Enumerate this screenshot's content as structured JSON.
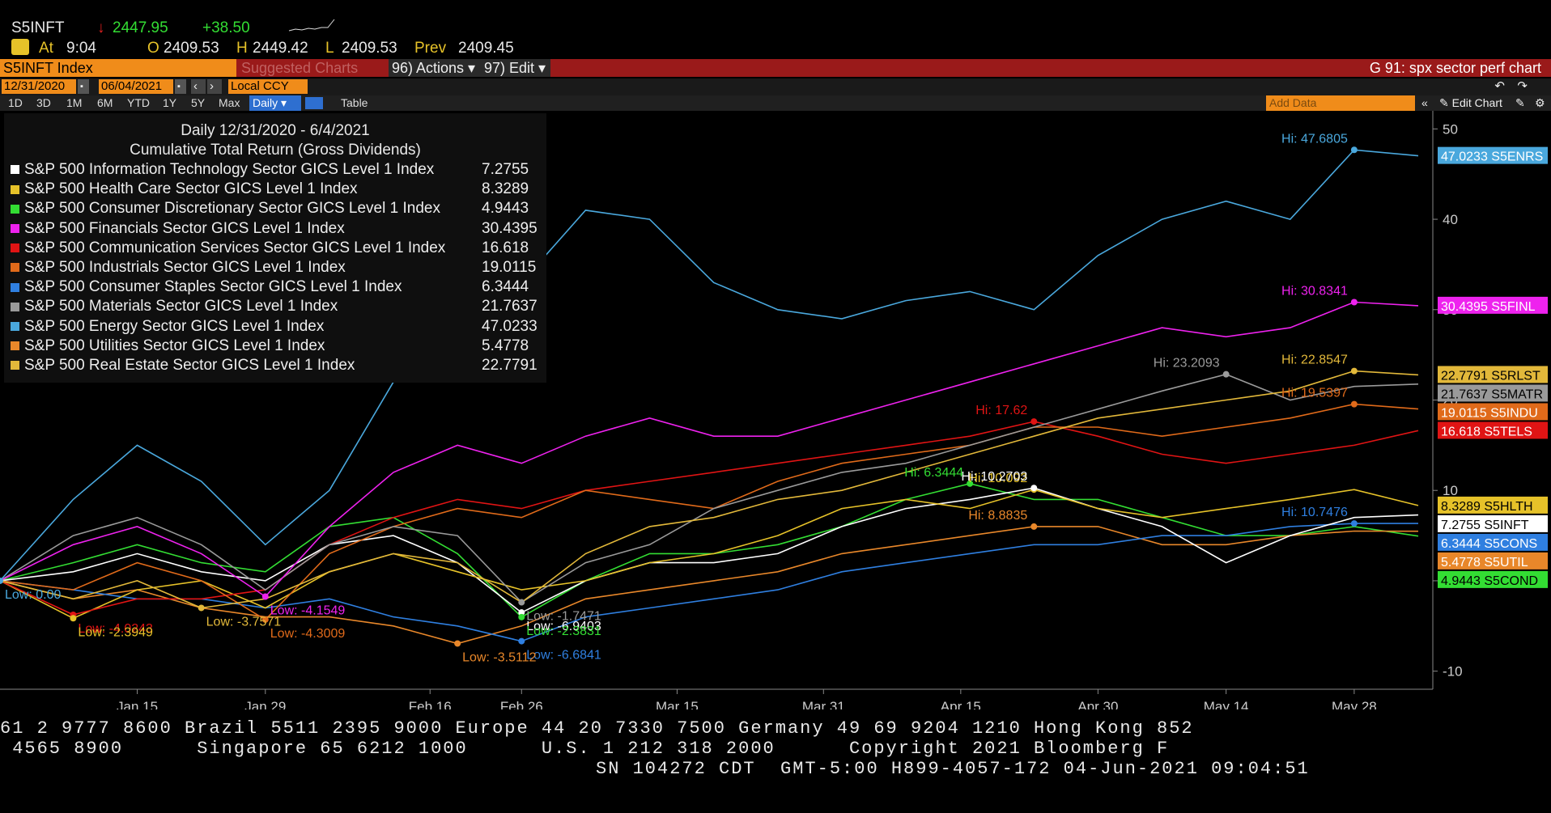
{
  "header": {
    "ticker": "S5INFT",
    "arrow": "↓",
    "price": "2447.95",
    "change": "+38.50",
    "at_label": "At",
    "time": "9:04",
    "open_label": "O",
    "open": "2409.53",
    "high_label": "H",
    "high": "2449.42",
    "low_label": "L",
    "low": "2409.53",
    "prev_label": "Prev",
    "prev": "2409.45"
  },
  "toolbar": {
    "security": "S5INFT Index",
    "suggested": "Suggested Charts",
    "actions": "96) Actions ▾",
    "edit": "97) Edit ▾",
    "chart_title": "G 91: spx sector perf chart"
  },
  "datebar": {
    "start_date": "12/31/2020",
    "end_date": "06/04/2021",
    "currency": "Local CCY",
    "add_data_placeholder": "Add Data",
    "edit_chart": "✎ Edit Chart"
  },
  "periods": [
    "1D",
    "3D",
    "1M",
    "6M",
    "YTD",
    "1Y",
    "5Y",
    "Max"
  ],
  "period_selected": "Daily ▾",
  "table_label": "Table",
  "legend": {
    "title": "Daily 12/31/2020 - 6/4/2021",
    "subtitle": "Cumulative Total Return (Gross Dividends)",
    "items": [
      {
        "name": "S&P 500 Information Technology Sector GICS Level 1 Index",
        "value": "7.2755",
        "color": "#ffffff"
      },
      {
        "name": "S&P 500 Health Care Sector GICS Level 1 Index",
        "value": "8.3289",
        "color": "#e6c229"
      },
      {
        "name": "S&P 500 Consumer Discretionary Sector GICS Level 1 Index",
        "value": "4.9443",
        "color": "#33dd33"
      },
      {
        "name": "S&P 500 Financials Sector GICS Level 1 Index",
        "value": "30.4395",
        "color": "#ee22ee"
      },
      {
        "name": "S&P 500 Communication Services Sector GICS Level 1 Index",
        "value": "16.618",
        "color": "#e01414"
      },
      {
        "name": "S&P 500 Industrials Sector GICS Level 1 Index",
        "value": "19.0115",
        "color": "#e06a1a"
      },
      {
        "name": "S&P 500 Consumer Staples Sector GICS Level 1 Index",
        "value": "6.3444",
        "color": "#2f7fe0"
      },
      {
        "name": "S&P 500 Materials Sector GICS Level 1 Index",
        "value": "21.7637",
        "color": "#9a9a9a"
      },
      {
        "name": "S&P 500 Energy Sector GICS Level 1 Index",
        "value": "47.0233",
        "color": "#4aa8dd"
      },
      {
        "name": "S&P 500 Utilities Sector GICS Level 1 Index",
        "value": "5.4778",
        "color": "#e8872a"
      },
      {
        "name": "S&P 500 Real Estate Sector GICS Level 1 Index",
        "value": "22.7791",
        "color": "#e2b83a"
      }
    ]
  },
  "chart_data": {
    "type": "line",
    "x": [
      "2020-12-31",
      "2021-01-08",
      "2021-01-15",
      "2021-01-22",
      "2021-01-29",
      "2021-02-05",
      "2021-02-12",
      "2021-02-19",
      "2021-02-26",
      "2021-03-05",
      "2021-03-12",
      "2021-03-19",
      "2021-03-26",
      "2021-04-02",
      "2021-04-09",
      "2021-04-16",
      "2021-04-23",
      "2021-04-30",
      "2021-05-07",
      "2021-05-14",
      "2021-05-21",
      "2021-05-28",
      "2021-06-04"
    ],
    "ylim": [
      -12,
      52
    ],
    "y_ticks": [
      -10,
      0,
      10,
      20,
      30,
      40,
      50
    ],
    "x_tick_labels": [
      "Jan 15",
      "Jan 29",
      "Feb 16",
      "Feb 26",
      "Mar 15",
      "Mar 31",
      "Apr 15",
      "Apr 30",
      "May 14",
      "May 28"
    ],
    "x_tick_dates": [
      "2021-01-15",
      "2021-01-29",
      "2021-02-16",
      "2021-02-26",
      "2021-03-15",
      "2021-03-31",
      "2021-04-15",
      "2021-04-30",
      "2021-05-14",
      "2021-05-28"
    ],
    "x_year_label": "2021",
    "series": [
      {
        "name": "S&P 500 Energy Sector GICS Level 1 Index",
        "short": "47.0233 S5ENRS",
        "color": "#4aa8dd",
        "values": [
          0,
          9,
          15,
          11,
          4,
          10,
          22,
          28,
          33,
          41,
          40,
          33,
          30,
          29,
          31,
          32,
          30,
          36,
          40,
          42,
          40,
          47.68,
          47.02
        ]
      },
      {
        "name": "S&P 500 Financials Sector GICS Level 1 Index",
        "short": "30.4395 S5FINL",
        "color": "#ee22ee",
        "values": [
          0,
          4,
          6,
          3,
          -1.75,
          6,
          12,
          15,
          13,
          16,
          18,
          16,
          16,
          18,
          20,
          22,
          24,
          26,
          28,
          27,
          28,
          30.83,
          30.44
        ]
      },
      {
        "name": "S&P 500 Real Estate Sector GICS Level 1 Index",
        "short": "22.7791 S5RLST",
        "color": "#e2b83a",
        "values": [
          0,
          -2,
          0,
          -3,
          -2,
          1,
          3,
          2,
          -2.39,
          3,
          6,
          7,
          9,
          10,
          12,
          14,
          16,
          18,
          19,
          20,
          21,
          23.21,
          22.78
        ]
      },
      {
        "name": "S&P 500 Materials Sector GICS Level 1 Index",
        "short": "21.7637 S5MATR",
        "color": "#9a9a9a",
        "values": [
          0,
          5,
          7,
          4,
          -1,
          4,
          6,
          5,
          -2.38,
          2,
          4,
          8,
          10,
          12,
          13,
          15,
          17,
          19,
          21,
          22.85,
          20,
          21.5,
          21.76
        ]
      },
      {
        "name": "S&P 500 Industrials Sector GICS Level 1 Index",
        "short": "19.0115 S5INDU",
        "color": "#e06a1a",
        "values": [
          0,
          -1,
          2,
          0,
          -4.3,
          3,
          6,
          8,
          7,
          10,
          9,
          8,
          11,
          13,
          14,
          15,
          17,
          17,
          16,
          17,
          18,
          19.54,
          19.01
        ]
      },
      {
        "name": "S&P 500 Communication Services Sector GICS Level 1 Index",
        "short": "16.618 S5TELS",
        "color": "#e01414",
        "values": [
          0,
          -3.76,
          -2,
          -2,
          -1,
          4,
          7,
          9,
          8,
          10,
          11,
          12,
          13,
          14,
          15,
          16,
          17.62,
          16,
          14,
          13,
          14,
          15,
          16.62
        ]
      },
      {
        "name": "S&P 500 Health Care Sector GICS Level 1 Index",
        "short": "8.3289 S5HLTH",
        "color": "#e6c229",
        "values": [
          0,
          -4.15,
          -1,
          0,
          -3,
          1,
          3,
          1,
          -1,
          0,
          2,
          3,
          5,
          8,
          9,
          8,
          10.09,
          8,
          7,
          8,
          9,
          10.09,
          8.33
        ]
      },
      {
        "name": "S&P 500 Information Technology Sector GICS Level 1 Index",
        "short": "7.2755 S5INFT",
        "color": "#ffffff",
        "values": [
          0,
          1,
          3,
          1,
          0,
          4,
          5,
          2,
          -3.51,
          0,
          2,
          2,
          3,
          6,
          8,
          9,
          10.27,
          8,
          6,
          2,
          5,
          7,
          7.28
        ]
      },
      {
        "name": "S&P 500 Consumer Staples Sector GICS Level 1 Index",
        "short": "6.3444 S5CONS",
        "color": "#2f7fe0",
        "values": [
          0,
          -1,
          -2,
          -2,
          -3,
          -2,
          -4,
          -5,
          -6.68,
          -4,
          -3,
          -2,
          -1,
          1,
          2,
          3,
          4,
          4,
          5,
          5,
          6,
          6.34,
          6.34
        ]
      },
      {
        "name": "S&P 500 Utilities Sector GICS Level 1 Index",
        "short": "5.4778 S5UTIL",
        "color": "#e8872a",
        "values": [
          0,
          -2,
          -1,
          -3,
          -4,
          -4,
          -5,
          -6.94,
          -5,
          -2,
          -1,
          0,
          1,
          3,
          4,
          5,
          6,
          6,
          4,
          4,
          5,
          5.5,
          5.48
        ]
      },
      {
        "name": "S&P 500 Consumer Discretionary Sector GICS Level 1 Index",
        "short": "4.9443 S5COND",
        "color": "#33dd33",
        "values": [
          0,
          2,
          4,
          2,
          1,
          6,
          7,
          3,
          -4.02,
          0,
          3,
          3,
          4,
          6,
          9,
          10.75,
          9,
          9,
          7,
          5,
          5,
          6,
          4.94
        ]
      }
    ],
    "hi_labels": [
      "Hi: 47.6805",
      "Hi: 30.8341",
      "Hi: 22.8547",
      "Hi: 23.2093",
      "Hi: 19.5397",
      "Hi: 17.62",
      "Hi: 10.092",
      "Hi: 10.2703",
      "Hi: 10.7476",
      "Hi: 8.8835",
      "Hi: 6.3444"
    ],
    "low_labels": [
      "Low: 0.00",
      "Low: -4.1549",
      "Low: -3.7571",
      "Low: -1.7471",
      "Low: -4.3009",
      "Low: -4.0243",
      "Low: -2.3949",
      "Low: -6.9403",
      "Low: -6.6841",
      "Low: -3.5112",
      "Low: -2.3831"
    ]
  },
  "footer": {
    "line1": "61 2 9777 8600 Brazil 5511 2395 9000 Europe 44 20 7330 7500 Germany 49 69 9204 1210 Hong Kong 852",
    "line2": " 4565 8900      Singapore 65 6212 1000      U.S. 1 212 318 2000      Copyright 2021 Bloomberg F",
    "line3": "SN 104272 CDT  GMT-5:00 H899-4057-172 04-Jun-2021 09:04:51"
  }
}
